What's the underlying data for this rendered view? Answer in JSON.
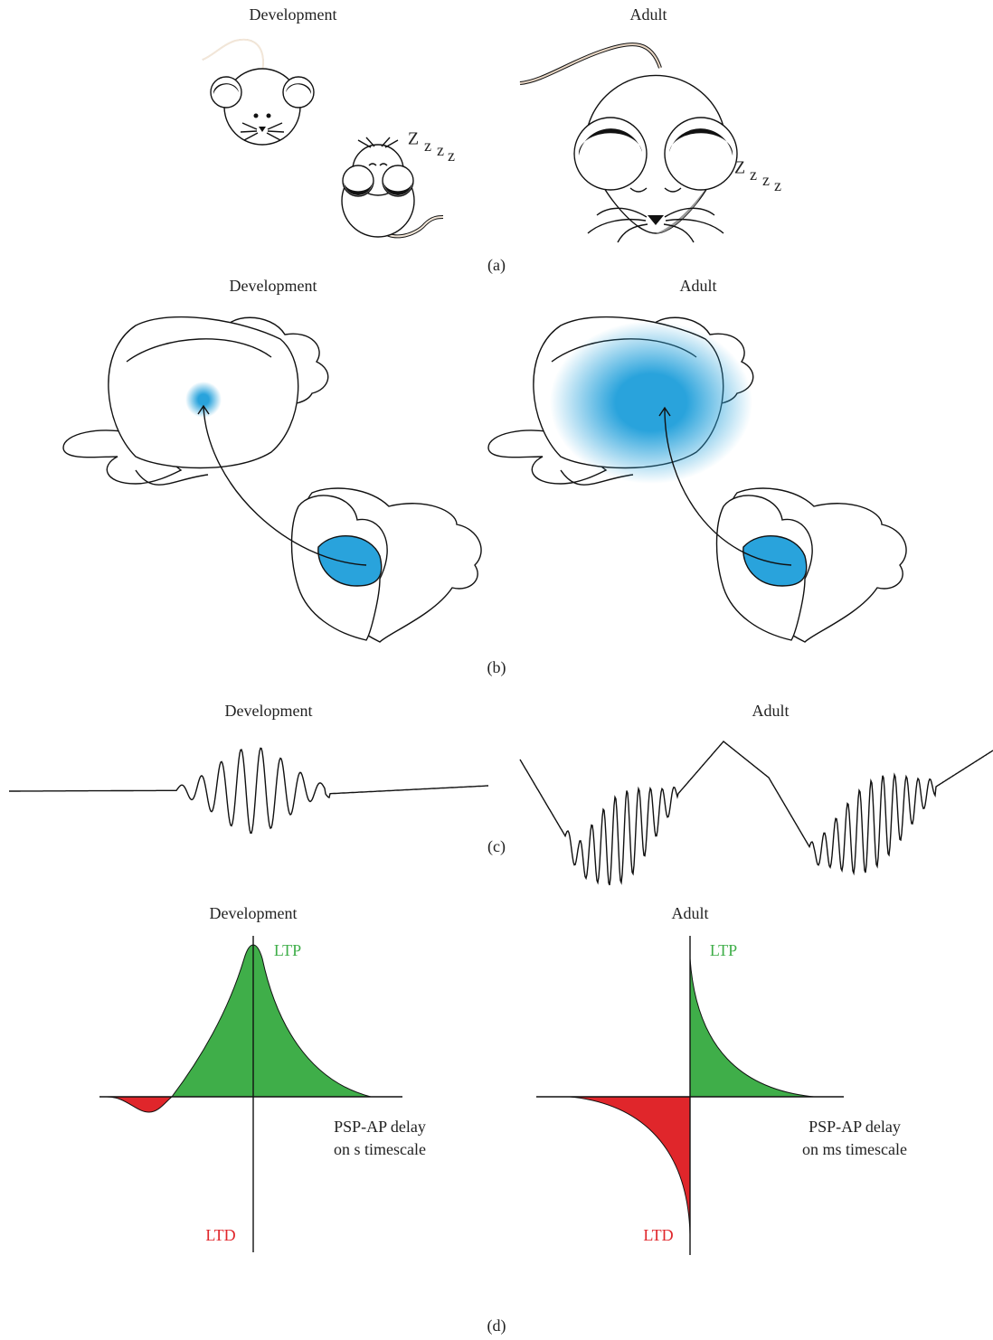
{
  "panels": [
    {
      "label": "(a)",
      "left": {
        "title": "Development",
        "sleep_text": [
          "Z",
          "z",
          "z",
          "z"
        ]
      },
      "right": {
        "title": "Adult",
        "sleep_text": [
          "Z",
          "z",
          "z",
          "z"
        ]
      }
    },
    {
      "label": "(b)",
      "left": {
        "title": "Development"
      },
      "right": {
        "title": "Adult"
      }
    },
    {
      "label": "(c)",
      "left": {
        "title": "Development"
      },
      "right": {
        "title": "Adult"
      }
    },
    {
      "label": "(d)",
      "left": {
        "title": "Development",
        "ltp": "LTP",
        "ltd": "LTD",
        "axis_label": [
          "PSP-AP delay",
          "on s timescale"
        ]
      },
      "right": {
        "title": "Adult",
        "ltp": "LTP",
        "ltd": "LTD",
        "axis_label": [
          "PSP-AP delay",
          "on ms timescale"
        ]
      }
    }
  ]
}
